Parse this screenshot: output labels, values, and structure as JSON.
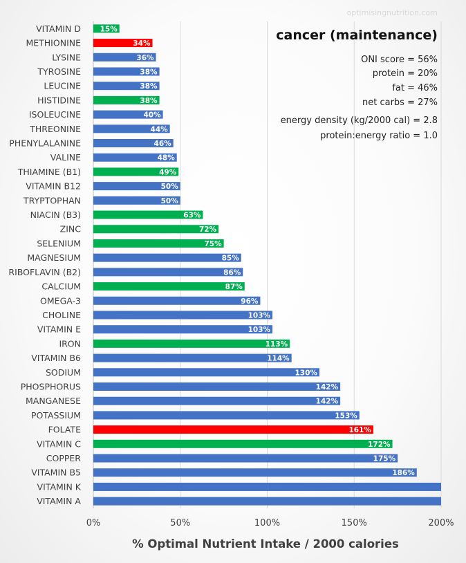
{
  "watermark": "optimisingnutrition.com",
  "chart_data": {
    "type": "bar",
    "orientation": "horizontal",
    "title": "cancer (maintenance)",
    "xlabel": "% Optimal Nutrient Intake / 2000 calories",
    "ylabel": "",
    "xlim": [
      0,
      200
    ],
    "xticks": [
      0,
      50,
      100,
      150,
      200
    ],
    "xtick_labels": [
      "0%",
      "50%",
      "100%",
      "150%",
      "200%"
    ],
    "grid": true,
    "colors": {
      "blue": "#4472C4",
      "green": "#00B050",
      "red": "#FF0000"
    },
    "categories": [
      "VITAMIN D",
      "METHIONINE",
      "LYSINE",
      "TYROSINE",
      "LEUCINE",
      "HISTIDINE",
      "ISOLEUCINE",
      "THREONINE",
      "PHENYLALANINE",
      "VALINE",
      "THIAMINE (B1)",
      "VITAMIN B12",
      "TRYPTOPHAN",
      "NIACIN (B3)",
      "ZINC",
      "SELENIUM",
      "MAGNESIUM",
      "RIBOFLAVIN (B2)",
      "CALCIUM",
      "OMEGA-3",
      "CHOLINE",
      "VITAMIN E",
      "IRON",
      "VITAMIN B6",
      "SODIUM",
      "PHOSPHORUS",
      "MANGANESE",
      "POTASSIUM",
      "FOLATE",
      "VITAMIN C",
      "COPPER",
      "VITAMIN B5",
      "VITAMIN K",
      "VITAMIN A"
    ],
    "values": [
      15,
      34,
      36,
      38,
      38,
      38,
      40,
      44,
      46,
      48,
      49,
      50,
      50,
      63,
      72,
      75,
      85,
      86,
      87,
      96,
      103,
      103,
      113,
      114,
      130,
      142,
      142,
      153,
      161,
      172,
      175,
      186,
      200,
      200
    ],
    "value_labels": [
      "15%",
      "34%",
      "36%",
      "38%",
      "38%",
      "38%",
      "40%",
      "44%",
      "46%",
      "48%",
      "49%",
      "50%",
      "50%",
      "63%",
      "72%",
      "75%",
      "85%",
      "86%",
      "87%",
      "96%",
      "103%",
      "103%",
      "113%",
      "114%",
      "130%",
      "142%",
      "142%",
      "153%",
      "161%",
      "172%",
      "175%",
      "186%",
      "",
      ""
    ],
    "bar_colors": [
      "green",
      "red",
      "blue",
      "blue",
      "blue",
      "green",
      "blue",
      "blue",
      "blue",
      "blue",
      "green",
      "blue",
      "blue",
      "green",
      "green",
      "green",
      "blue",
      "blue",
      "green",
      "blue",
      "blue",
      "blue",
      "green",
      "blue",
      "blue",
      "blue",
      "blue",
      "blue",
      "red",
      "green",
      "blue",
      "blue",
      "blue",
      "blue"
    ],
    "annotations": [
      "ONI score = 56%",
      "protein = 20%",
      "fat = 46%",
      "net carbs = 27%",
      "energy density (kg/2000 cal)  = 2.8",
      "protein:energy ratio = 1.0"
    ]
  }
}
